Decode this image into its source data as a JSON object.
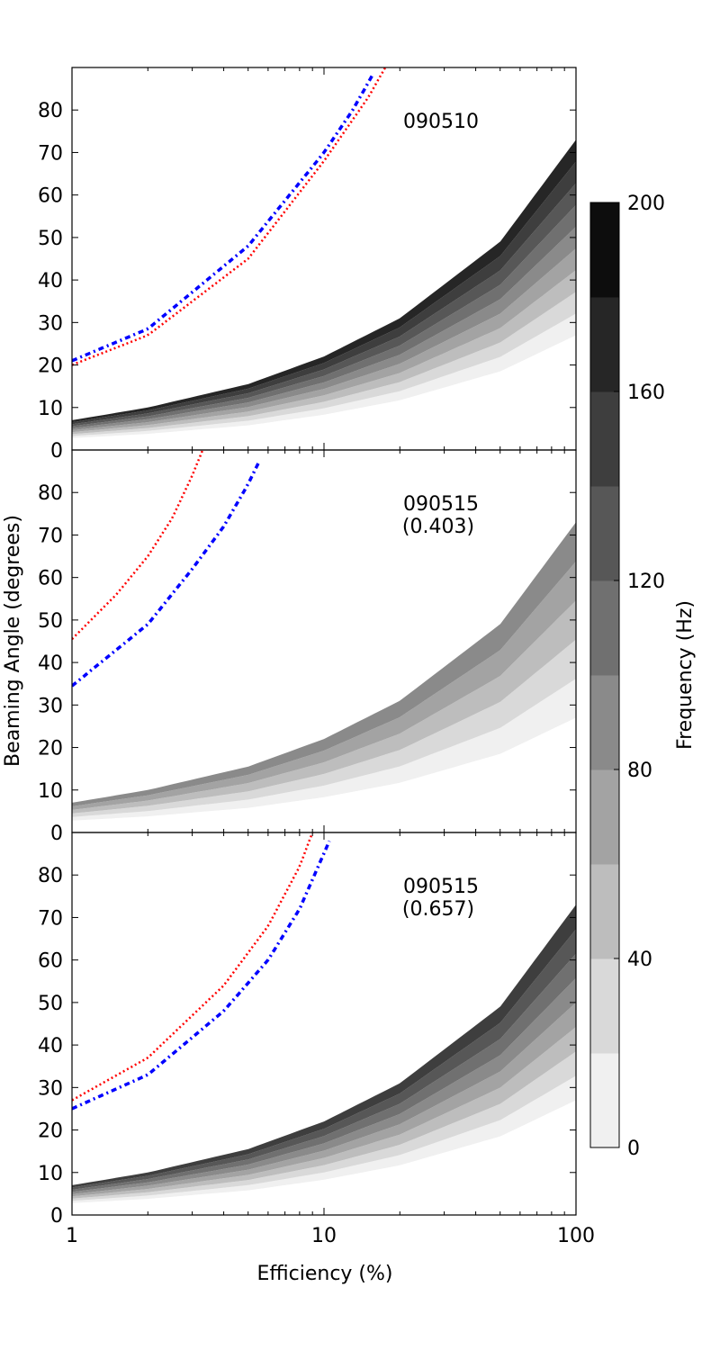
{
  "chart_data": {
    "type": "area",
    "xlabel": "Efficiency (%)",
    "ylabel": "Beaming Angle (degrees)",
    "xscale": "log",
    "xlim": [
      1,
      100
    ],
    "ylim": [
      0,
      90
    ],
    "x_ticks": [
      "1",
      "10",
      "100"
    ],
    "y_ticks": [
      "0",
      "10",
      "20",
      "30",
      "40",
      "50",
      "60",
      "70",
      "80"
    ],
    "colorbar": {
      "label": "Frequency (Hz)",
      "range": [
        0,
        200
      ],
      "ticks": [
        "0",
        "40",
        "80",
        "120",
        "160",
        "200"
      ],
      "level_colors": [
        "#f0f0f0",
        "#d9d9d9",
        "#bdbdbd",
        "#a3a3a3",
        "#8a8a8a",
        "#707070",
        "#575757",
        "#3e3e3e",
        "#262626",
        "#0d0d0d"
      ]
    },
    "band_edges": {
      "x": [
        1,
        2,
        5,
        10,
        20,
        50,
        100
      ],
      "lower": [
        2.8,
        3.8,
        5.8,
        8.3,
        11.7,
        18.5,
        27.0
      ],
      "upper": [
        7.0,
        10.0,
        15.5,
        22.0,
        31.0,
        49.0,
        73.0
      ]
    },
    "panels": [
      {
        "label": "090510",
        "sublabel": "",
        "visible_levels": 9,
        "red_dotted": {
          "x": [
            1,
            2,
            5,
            10,
            15,
            17.5
          ],
          "y": [
            20,
            27,
            45,
            68,
            83,
            90
          ]
        },
        "blue_dashdot": {
          "x": [
            1,
            2,
            5,
            10,
            13,
            15.5
          ],
          "y": [
            21,
            28.5,
            48,
            70,
            80,
            88
          ]
        }
      },
      {
        "label": "090515",
        "sublabel": "(0.403)",
        "visible_levels": 5,
        "red_dotted": {
          "x": [
            1,
            1.5,
            2,
            2.5,
            3.0,
            3.3
          ],
          "y": [
            45.5,
            56,
            65,
            74,
            84,
            90
          ]
        },
        "blue_dashdot": {
          "x": [
            1,
            2,
            3,
            4,
            5,
            5.5
          ],
          "y": [
            34.5,
            49,
            62,
            72,
            82,
            87
          ]
        }
      },
      {
        "label": "090515",
        "sublabel": "(0.657)",
        "visible_levels": 8,
        "red_dotted": {
          "x": [
            1,
            2,
            4,
            6,
            8,
            9
          ],
          "y": [
            27,
            37,
            54,
            68,
            82,
            90
          ]
        },
        "blue_dashdot": {
          "x": [
            1,
            2,
            4,
            6,
            8,
            10.5
          ],
          "y": [
            25,
            33,
            48,
            60,
            72,
            88
          ]
        }
      }
    ]
  }
}
